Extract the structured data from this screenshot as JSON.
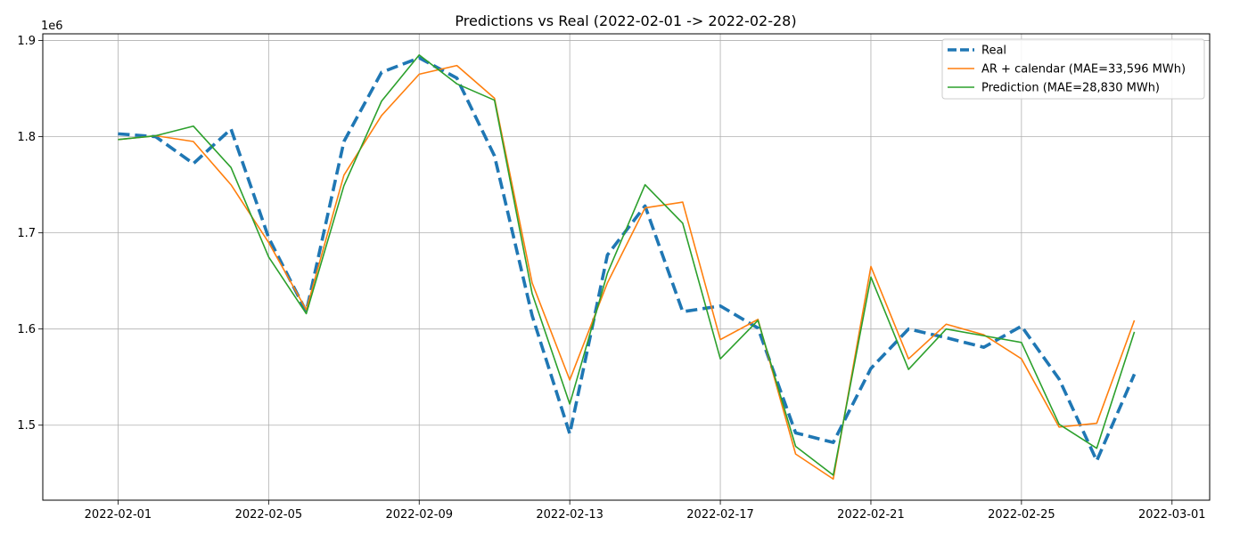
{
  "chart_data": {
    "type": "line",
    "title": "Predictions vs Real (2022-02-01 -> 2022-02-28)",
    "xlabel": "",
    "ylabel": "",
    "y_offset_label": "1e6",
    "x": [
      "2022-02-01",
      "2022-02-02",
      "2022-02-03",
      "2022-02-04",
      "2022-02-05",
      "2022-02-06",
      "2022-02-07",
      "2022-02-08",
      "2022-02-09",
      "2022-02-10",
      "2022-02-11",
      "2022-02-12",
      "2022-02-13",
      "2022-02-14",
      "2022-02-15",
      "2022-02-16",
      "2022-02-17",
      "2022-02-18",
      "2022-02-19",
      "2022-02-20",
      "2022-02-21",
      "2022-02-22",
      "2022-02-23",
      "2022-02-24",
      "2022-02-25",
      "2022-02-26",
      "2022-02-27",
      "2022-02-28"
    ],
    "xlim": [
      "2022-01-30",
      "2022-03-02"
    ],
    "x_tick_labels": [
      "2022-02-01",
      "2022-02-05",
      "2022-02-09",
      "2022-02-13",
      "2022-02-17",
      "2022-02-21",
      "2022-02-25",
      "2022-03-01"
    ],
    "ylim": [
      1.422,
      1.907
    ],
    "y_ticks": [
      1.5,
      1.6,
      1.7,
      1.8,
      1.9
    ],
    "y_tick_labels": [
      "1.5",
      "1.6",
      "1.7",
      "1.8",
      "1.9"
    ],
    "grid": true,
    "legend_position": "top-right",
    "series": [
      {
        "name": "Real",
        "color": "#1f77b4",
        "style": "dashed",
        "values": [
          1.803,
          1.8,
          1.772,
          1.808,
          1.695,
          1.618,
          1.795,
          1.867,
          1.882,
          1.861,
          1.78,
          1.614,
          1.491,
          1.677,
          1.728,
          1.618,
          1.624,
          1.601,
          1.492,
          1.482,
          1.559,
          1.6,
          1.591,
          1.581,
          1.603,
          1.548,
          1.463,
          1.553
        ]
      },
      {
        "name": "AR + calendar (MAE=33,596 MWh)",
        "color": "#ff7f0e",
        "style": "solid",
        "values": [
          1.797,
          1.801,
          1.795,
          1.75,
          1.69,
          1.62,
          1.76,
          1.822,
          1.865,
          1.874,
          1.84,
          1.648,
          1.547,
          1.648,
          1.726,
          1.732,
          1.589,
          1.61,
          1.47,
          1.444,
          1.665,
          1.569,
          1.605,
          1.594,
          1.569,
          1.498,
          1.502,
          1.609
        ]
      },
      {
        "name": "Prediction (MAE=28,830 MWh)",
        "color": "#2ca02c",
        "style": "solid",
        "values": [
          1.797,
          1.801,
          1.811,
          1.768,
          1.675,
          1.616,
          1.749,
          1.837,
          1.885,
          1.855,
          1.838,
          1.637,
          1.522,
          1.658,
          1.75,
          1.71,
          1.569,
          1.609,
          1.478,
          1.448,
          1.654,
          1.558,
          1.6,
          1.593,
          1.586,
          1.501,
          1.476,
          1.597
        ]
      }
    ]
  }
}
